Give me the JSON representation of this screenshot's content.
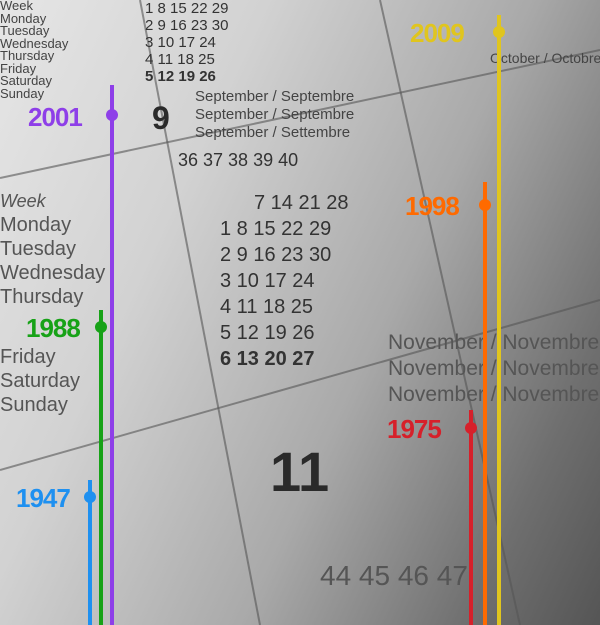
{
  "calendar": {
    "week_label": "Week",
    "weekdays_top": [
      "Monday",
      "Tuesday",
      "Wednesday",
      "Thursday",
      "Friday",
      "Saturday",
      "Sunday"
    ],
    "weekdays": [
      "Monday",
      "Tuesday",
      "Wednesday",
      "Thursday",
      "Friday",
      "Saturday",
      "Sunday"
    ],
    "september_month_number": "9",
    "september_labels": [
      "September / Septembre",
      "September / Septembre",
      "September / Settembre"
    ],
    "week_numbers": "36   37   38   39   40",
    "september_rows": [
      "7   14   21   28",
      "1   8   15   22   29",
      "2   9   16   23   30",
      "3   10   17   24",
      "4   11   18   25",
      "5   12   19   26",
      "6   13   20   27"
    ],
    "august_rows": [
      "1   8   15   22   29",
      "2   9   16   23   30",
      "3   10   17   24",
      "4   11   18   25",
      "5   12   19   26"
    ],
    "november_month_number": "11",
    "november_labels": [
      "November / Novembre",
      "November / Novembre",
      "November / Novembre"
    ],
    "october_label": "October / Octobre",
    "bottom_numbers": "44   45   46   47"
  },
  "timeline": [
    {
      "year": "2009",
      "color": "#e0c51e"
    },
    {
      "year": "2001",
      "color": "#8e3fe8"
    },
    {
      "year": "1998",
      "color": "#ff6a00"
    },
    {
      "year": "1988",
      "color": "#17a217"
    },
    {
      "year": "1975",
      "color": "#d6202a"
    },
    {
      "year": "1947",
      "color": "#1e90f0"
    }
  ]
}
